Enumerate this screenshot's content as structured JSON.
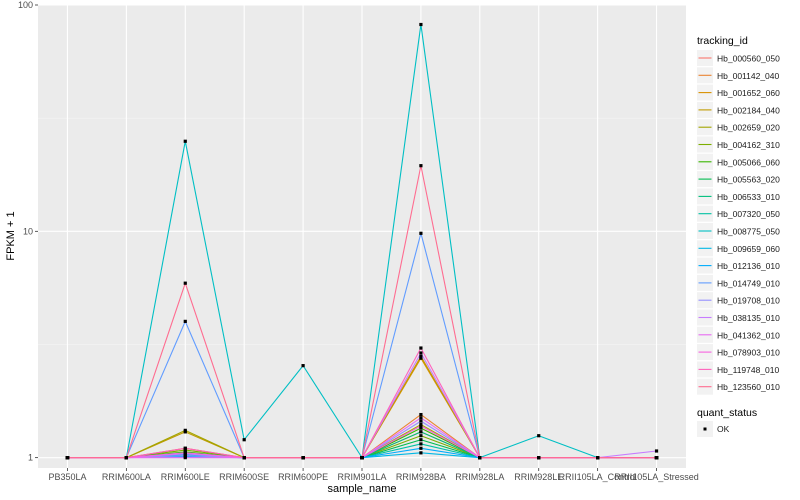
{
  "chart_data": {
    "type": "line",
    "xlabel": "sample_name",
    "ylabel": "FPKM + 1",
    "y_scale": "log10",
    "ylim": [
      0.9,
      100
    ],
    "y_ticks": [
      1,
      10,
      100
    ],
    "y_tick_labels": [
      "1",
      "10",
      "100"
    ],
    "categories": [
      "PB350LA",
      "RRIM600LA",
      "RRIM600LE",
      "RRIM600SE",
      "RRIM600PE",
      "RRIM901LA",
      "RRIM928BA",
      "RRIM928LA",
      "RRIM928LE",
      "RRII105LA_Control",
      "RRII105LA_Stressed"
    ],
    "grid": true,
    "legend_position": "right",
    "legend": {
      "title": "tracking_id",
      "status_title": "quant_status",
      "status_label": "OK"
    },
    "series": [
      {
        "name": "Hb_000560_050",
        "color": "#F8766D",
        "values": [
          1,
          1,
          1.03,
          1,
          1,
          1,
          1.3,
          1,
          1,
          1,
          1
        ]
      },
      {
        "name": "Hb_001142_040",
        "color": "#EA8331",
        "values": [
          1,
          1,
          1.05,
          1,
          1,
          1,
          1.55,
          1,
          1,
          1,
          1
        ]
      },
      {
        "name": "Hb_001652_060",
        "color": "#D89000",
        "values": [
          1,
          1,
          1.1,
          1,
          1,
          1,
          2.75,
          1,
          1,
          1,
          1
        ]
      },
      {
        "name": "Hb_002184_040",
        "color": "#C09B00",
        "values": [
          1,
          1,
          1.3,
          1,
          1,
          1,
          2.8,
          1,
          1,
          1,
          1
        ]
      },
      {
        "name": "Hb_002659_020",
        "color": "#A3A500",
        "values": [
          1,
          1,
          1.32,
          1,
          1,
          1,
          1.4,
          1,
          1,
          1,
          1
        ]
      },
      {
        "name": "Hb_004162_310",
        "color": "#7CAE00",
        "values": [
          1,
          1,
          1.08,
          1,
          1,
          1,
          1.25,
          1,
          1,
          1,
          1
        ]
      },
      {
        "name": "Hb_005066_060",
        "color": "#39B600",
        "values": [
          1,
          1,
          1.06,
          1,
          1,
          1,
          1.35,
          1,
          1,
          1,
          1
        ]
      },
      {
        "name": "Hb_005563_020",
        "color": "#00BB4E",
        "values": [
          1,
          1,
          1.04,
          1,
          1,
          1,
          1.2,
          1,
          1,
          1,
          1
        ]
      },
      {
        "name": "Hb_006533_010",
        "color": "#00BF7D",
        "values": [
          1,
          1,
          1.02,
          1,
          1,
          1,
          1.3,
          1,
          1,
          1,
          1
        ]
      },
      {
        "name": "Hb_007320_050",
        "color": "#00C1A3",
        "values": [
          1,
          1,
          1.05,
          1,
          1,
          1,
          1.15,
          1,
          1,
          1,
          1
        ]
      },
      {
        "name": "Hb_008775_050",
        "color": "#00BFC4",
        "values": [
          1,
          1,
          25,
          1.2,
          2.55,
          1,
          82,
          1,
          1.25,
          1,
          1
        ]
      },
      {
        "name": "Hb_009659_060",
        "color": "#00B8E5",
        "values": [
          1,
          1,
          1.03,
          1,
          1,
          1,
          1.05,
          1,
          1,
          1,
          1
        ]
      },
      {
        "name": "Hb_012136_010",
        "color": "#00ACFC",
        "values": [
          1,
          1,
          1.01,
          1,
          1,
          1,
          1.1,
          1,
          1,
          1,
          1
        ]
      },
      {
        "name": "Hb_014749_010",
        "color": "#619CFF",
        "values": [
          1,
          1,
          4.0,
          1,
          1,
          1,
          9.8,
          1,
          1,
          1,
          1
        ]
      },
      {
        "name": "Hb_019708_010",
        "color": "#9590FF",
        "values": [
          1,
          1,
          1.02,
          1,
          1,
          1,
          1.45,
          1,
          1,
          1,
          1
        ]
      },
      {
        "name": "Hb_038135_010",
        "color": "#C77CFF",
        "values": [
          1,
          1,
          1.04,
          1,
          1,
          1,
          2.9,
          1,
          1,
          1,
          1.07
        ]
      },
      {
        "name": "Hb_041362_010",
        "color": "#E76BF3",
        "values": [
          1,
          1,
          1.0,
          1,
          1,
          1,
          1.5,
          1,
          1,
          1,
          1
        ]
      },
      {
        "name": "Hb_078903_010",
        "color": "#F763E0",
        "values": [
          1,
          1,
          1.05,
          1,
          1,
          1,
          1.38,
          1,
          1,
          1,
          1
        ]
      },
      {
        "name": "Hb_119748_010",
        "color": "#FF62BC",
        "values": [
          1,
          1,
          1.1,
          1,
          1,
          1,
          3.05,
          1,
          1,
          1,
          1
        ]
      },
      {
        "name": "Hb_123560_010",
        "color": "#FF6C90",
        "values": [
          1,
          1,
          5.9,
          1,
          1,
          1,
          19.5,
          1,
          1,
          1,
          1
        ]
      }
    ]
  }
}
